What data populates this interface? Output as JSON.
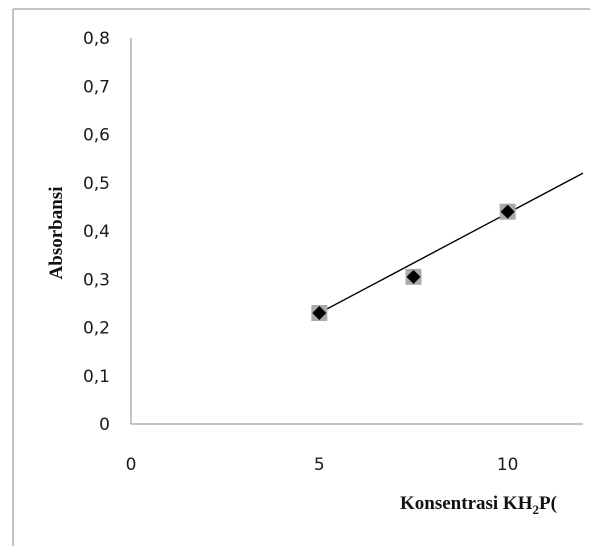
{
  "chart_data": {
    "type": "scatter",
    "xlabel": "Konsentrasi KH",
    "xlabel_sub": "2",
    "xlabel_tail": "P(",
    "ylabel": "Absorbansi",
    "xlim": [
      0,
      12
    ],
    "ylim": [
      0,
      0.8
    ],
    "xticks": [
      0,
      5,
      10
    ],
    "xtick_labels": [
      "0",
      "5",
      "10"
    ],
    "yticks": [
      0,
      0.1,
      0.2,
      0.3,
      0.4,
      0.5,
      0.6,
      0.7,
      0.8
    ],
    "ytick_labels": [
      "0",
      "0,1",
      "0,2",
      "0,3",
      "0,4",
      "0,5",
      "0,6",
      "0,7",
      "0,8"
    ],
    "points": [
      {
        "x": 5,
        "y": 0.23
      },
      {
        "x": 7.5,
        "y": 0.305
      },
      {
        "x": 10,
        "y": 0.44
      }
    ],
    "trendline": {
      "x": [
        5,
        12
      ],
      "y": [
        0.23,
        0.52
      ]
    },
    "grid": false,
    "colors": {
      "marker": "#000000",
      "marker_shadow": "#aaaaaa",
      "line": "#000000",
      "axis": "#888888"
    }
  }
}
